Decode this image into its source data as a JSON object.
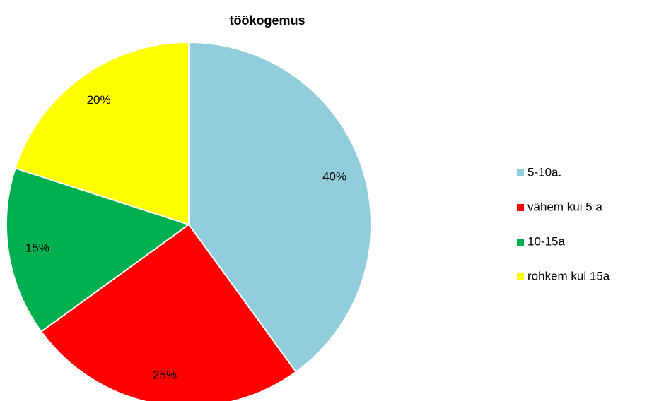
{
  "chart_data": {
    "type": "pie",
    "title": "töökogemus",
    "categories": [
      "5-10a.",
      "vähem kui 5 a",
      "10-15a",
      "rohkem kui 15a"
    ],
    "values": [
      40,
      25,
      15,
      20
    ],
    "value_labels": [
      "40%",
      "25%",
      "15%",
      "20%"
    ],
    "colors": [
      "#92cddc",
      "#ff0000",
      "#00b050",
      "#ffff00"
    ],
    "legend": "right"
  }
}
